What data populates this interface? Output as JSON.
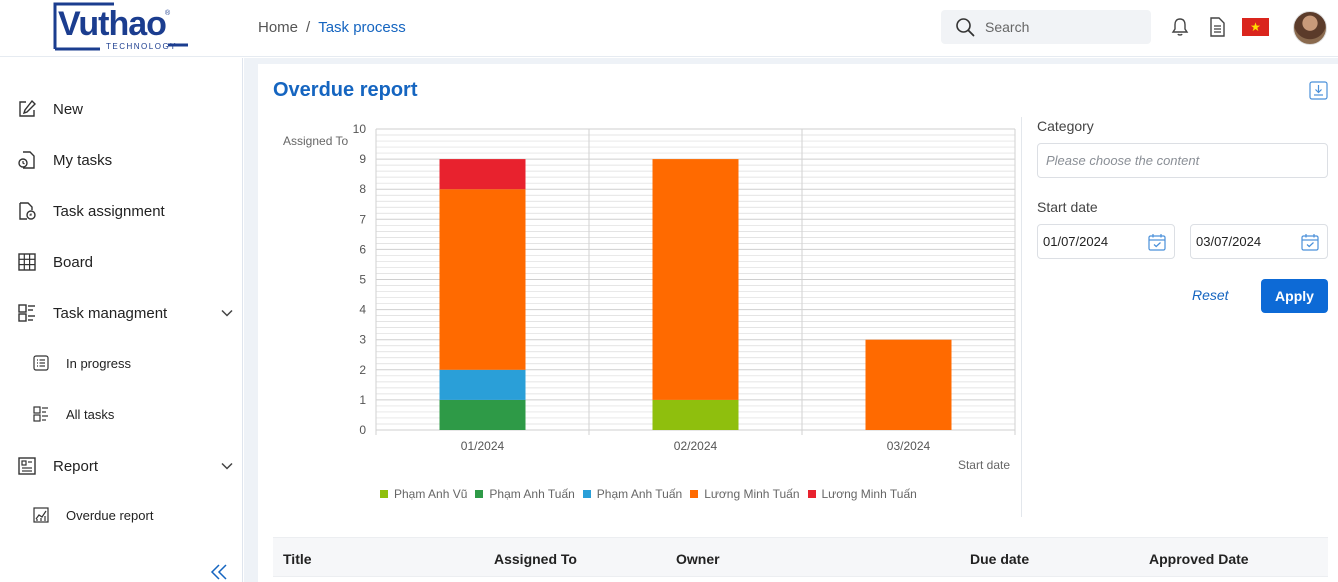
{
  "header": {
    "logo_text": "Vuthao",
    "logo_sub": "TECHNOLOGY",
    "logo_reg": "®",
    "breadcrumb": {
      "home": "Home",
      "separator": "/",
      "current": "Task process"
    },
    "search_placeholder": "Search"
  },
  "sidebar": {
    "items": [
      {
        "label": "New",
        "icon": "edit-icon"
      },
      {
        "label": "My tasks",
        "icon": "my-tasks-icon"
      },
      {
        "label": "Task assignment",
        "icon": "task-assignment-icon"
      },
      {
        "label": "Board",
        "icon": "board-grid-icon"
      },
      {
        "label": "Task managment",
        "icon": "task-management-icon"
      },
      {
        "label": "In progress",
        "icon": "list-icon"
      },
      {
        "label": "All tasks",
        "icon": "all-tasks-icon"
      },
      {
        "label": "Report",
        "icon": "report-icon"
      },
      {
        "label": "Overdue report",
        "icon": "chart-report-icon"
      }
    ]
  },
  "page": {
    "title": "Overdue report"
  },
  "filters": {
    "category_label": "Category",
    "category_placeholder": "Please choose the content",
    "start_date_label": "Start date",
    "from_date": "01/07/2024",
    "to_date": "03/07/2024",
    "reset_label": "Reset",
    "apply_label": "Apply"
  },
  "chart_data": {
    "type": "bar",
    "stacked": true,
    "categories": [
      "01/2024",
      "02/2024",
      "03/2024"
    ],
    "series": [
      {
        "name": "Phạm Anh Vũ",
        "color": "#8fbf0d",
        "values": [
          0,
          1,
          0
        ]
      },
      {
        "name": "Phạm Anh Tuấn",
        "color": "#2e9a47",
        "values": [
          1,
          0,
          0
        ]
      },
      {
        "name": "Phạm Anh Tuấn",
        "color": "#2a9fd8",
        "values": [
          1,
          0,
          0
        ]
      },
      {
        "name": "Lương Minh Tuấn",
        "color": "#ff6a00",
        "values": [
          6,
          8,
          3
        ]
      },
      {
        "name": "Lương Minh Tuấn",
        "color": "#e8222e",
        "values": [
          1,
          0,
          0
        ]
      }
    ],
    "ylabel": "Assigned To",
    "xlabel": "Start date",
    "ylim": [
      0,
      10
    ],
    "yticks": [
      0,
      1,
      2,
      3,
      4,
      5,
      6,
      7,
      8,
      9,
      10
    ],
    "grid": true,
    "legend": "bottom"
  },
  "table": {
    "columns": [
      "Title",
      "Assigned To",
      "Owner",
      "Due date",
      "Approved Date"
    ]
  }
}
